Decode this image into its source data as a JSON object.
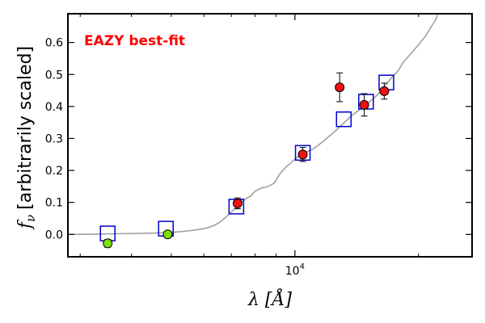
{
  "chart_data": {
    "type": "scatter",
    "title": "",
    "annotation": "EAZY best-fit",
    "annotation_color": "#ff0000",
    "xlabel": "λ [Å]",
    "ylabel": "f_ν [arbitrarily scaled]",
    "ylabel_symbol": "f",
    "ylabel_subscript": "ν",
    "ylabel_text": "[arbitrarily scaled]",
    "x_scale": "log",
    "xlim": [
      2800,
      27000
    ],
    "ylim": [
      -0.07,
      0.69
    ],
    "x_ticks": [
      {
        "value": 10000,
        "label_base": "10",
        "label_exp": "4"
      }
    ],
    "y_ticks": [
      {
        "value": 0.0,
        "label": "0.0"
      },
      {
        "value": 0.1,
        "label": "0.1"
      },
      {
        "value": 0.2,
        "label": "0.2"
      },
      {
        "value": 0.3,
        "label": "0.3"
      },
      {
        "value": 0.4,
        "label": "0.4"
      },
      {
        "value": 0.5,
        "label": "0.5"
      },
      {
        "value": 0.6,
        "label": "0.6"
      }
    ],
    "grid": false,
    "series": [
      {
        "kind": "line",
        "color": "#a0a0a0",
        "points": [
          [
            2800,
            0.0
          ],
          [
            3300,
            0.001
          ],
          [
            3700,
            0.002
          ],
          [
            4100,
            0.003
          ],
          [
            4500,
            0.004
          ],
          [
            4800,
            0.005
          ],
          [
            5000,
            0.006
          ],
          [
            5200,
            0.008
          ],
          [
            5400,
            0.01
          ],
          [
            5600,
            0.012
          ],
          [
            5800,
            0.015
          ],
          [
            6000,
            0.018
          ],
          [
            6200,
            0.023
          ],
          [
            6400,
            0.03
          ],
          [
            6600,
            0.04
          ],
          [
            6800,
            0.055
          ],
          [
            7000,
            0.07
          ],
          [
            7200,
            0.085
          ],
          [
            7400,
            0.1
          ],
          [
            7600,
            0.112
          ],
          [
            7800,
            0.12
          ],
          [
            8000,
            0.135
          ],
          [
            8300,
            0.145
          ],
          [
            8600,
            0.15
          ],
          [
            8900,
            0.16
          ],
          [
            9200,
            0.19
          ],
          [
            9500,
            0.21
          ],
          [
            9800,
            0.225
          ],
          [
            10100,
            0.24
          ],
          [
            10500,
            0.255
          ],
          [
            10900,
            0.262
          ],
          [
            11300,
            0.275
          ],
          [
            11700,
            0.29
          ],
          [
            12200,
            0.31
          ],
          [
            12700,
            0.33
          ],
          [
            13200,
            0.35
          ],
          [
            13700,
            0.37
          ],
          [
            14200,
            0.385
          ],
          [
            14700,
            0.4
          ],
          [
            15200,
            0.415
          ],
          [
            15700,
            0.43
          ],
          [
            16200,
            0.45
          ],
          [
            16700,
            0.47
          ],
          [
            17200,
            0.49
          ],
          [
            17800,
            0.51
          ],
          [
            18400,
            0.54
          ],
          [
            19000,
            0.56
          ],
          [
            19600,
            0.58
          ],
          [
            20200,
            0.6
          ],
          [
            20800,
            0.62
          ],
          [
            21500,
            0.65
          ],
          [
            22000,
            0.67
          ],
          [
            22300,
            0.69
          ]
        ]
      },
      {
        "kind": "markers",
        "name": "",
        "marker": "square-open",
        "color": "#0000cc",
        "points": [
          [
            3500,
            0.003
          ],
          [
            4850,
            0.018
          ],
          [
            7200,
            0.087
          ],
          [
            10450,
            0.255
          ],
          [
            13150,
            0.36
          ],
          [
            14900,
            0.415
          ],
          [
            16700,
            0.475
          ]
        ]
      },
      {
        "kind": "markers",
        "name": "",
        "marker": "circle",
        "color": "#7fe000",
        "points": [
          {
            "x": 3500,
            "y": -0.028,
            "err": 0.012
          },
          {
            "x": 4900,
            "y": 0.0,
            "err": 0.0
          }
        ]
      },
      {
        "kind": "markers",
        "name": "",
        "marker": "circle",
        "color": "#ee1111",
        "points": [
          {
            "x": 7250,
            "y": 0.097,
            "err": 0.017
          },
          {
            "x": 10450,
            "y": 0.25,
            "err": 0.022
          },
          {
            "x": 12850,
            "y": 0.46,
            "err": 0.045
          },
          {
            "x": 14750,
            "y": 0.405,
            "err": 0.035
          },
          {
            "x": 16500,
            "y": 0.448,
            "err": 0.025
          }
        ]
      }
    ]
  }
}
